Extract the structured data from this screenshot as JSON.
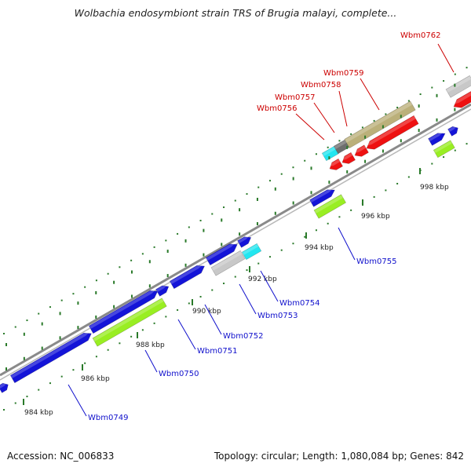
{
  "title": "Wolbachia endosymbiont strain TRS of Brugia malayi, complete...",
  "footer": {
    "accession": "Accession: NC_006833",
    "summary": "Topology: circular; Length: 1,080,084 bp; Genes: 842"
  },
  "colors": {
    "backbone": "#8a8a8a",
    "tick": "#2a7a2a",
    "cds_blue": "#1414d8",
    "cds_red": "#ee1111",
    "green": "#99ee22",
    "gray": "#c8c8c8",
    "cyan": "#22e6f0",
    "khaki": "#bbb07a",
    "darkgray": "#6e6e6e",
    "label_red": "#cc0000",
    "label_blue": "#1010cc"
  },
  "ticks": [
    {
      "label": "984 kbp"
    },
    {
      "label": "986 kbp"
    },
    {
      "label": "988 kbp"
    },
    {
      "label": "990 kbp"
    },
    {
      "label": "992 kbp"
    },
    {
      "label": "994 kbp"
    },
    {
      "label": "996 kbp"
    },
    {
      "label": "998 kbp"
    }
  ],
  "upper_labels": [
    {
      "name": "Wbm0756"
    },
    {
      "name": "Wbm0757"
    },
    {
      "name": "Wbm0758"
    },
    {
      "name": "Wbm0759"
    },
    {
      "name": "Wbm0762"
    }
  ],
  "lower_labels": [
    {
      "name": "Wbm0749"
    },
    {
      "name": "Wbm0750"
    },
    {
      "name": "Wbm0751"
    },
    {
      "name": "Wbm0752"
    },
    {
      "name": "Wbm0753"
    },
    {
      "name": "Wbm0754"
    },
    {
      "name": "Wbm0755"
    }
  ]
}
